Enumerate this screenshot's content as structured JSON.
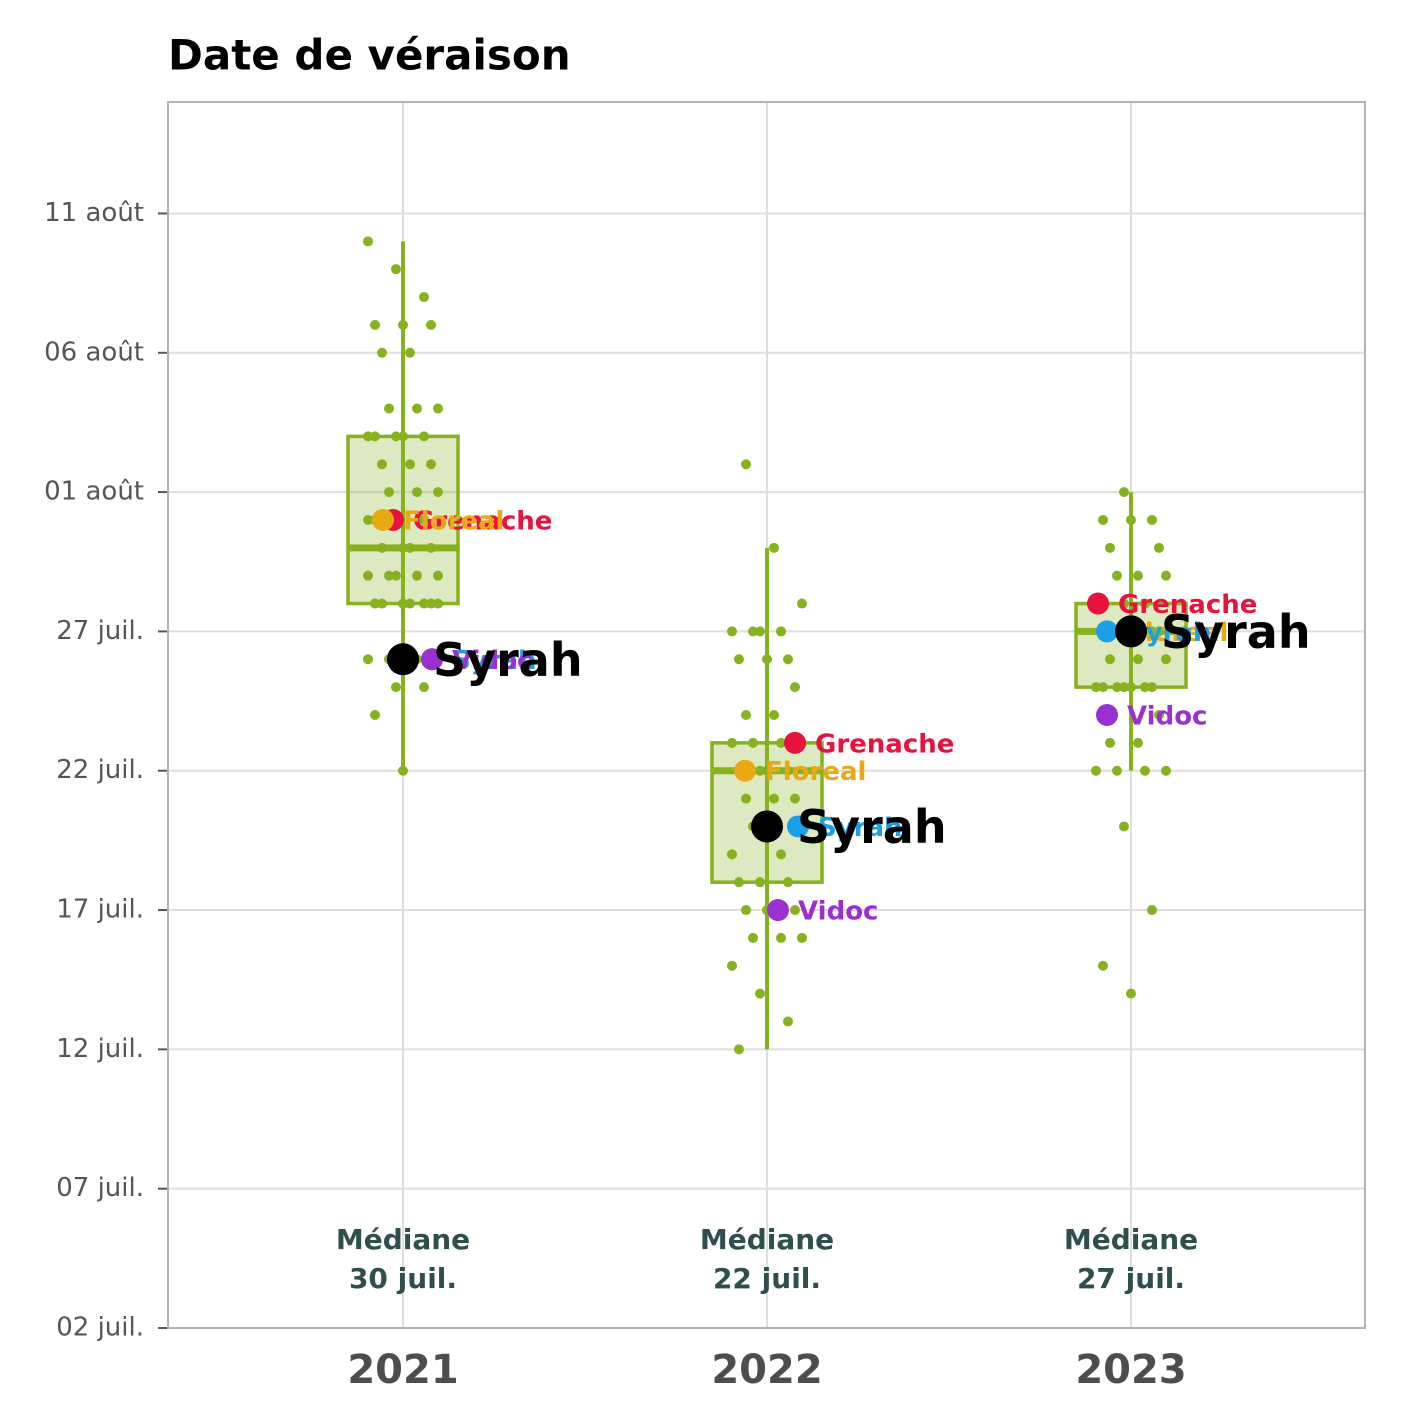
{
  "chart_data": {
    "type": "box",
    "title": "Date de véraison",
    "categories": [
      "2021",
      "2022",
      "2023"
    ],
    "ylim": [
      "07-02",
      "08-15"
    ],
    "yticks": [
      {
        "value": "07-02",
        "label": "02 juil."
      },
      {
        "value": "07-07",
        "label": "07 juil."
      },
      {
        "value": "07-12",
        "label": "12 juil."
      },
      {
        "value": "07-17",
        "label": "17 juil."
      },
      {
        "value": "07-22",
        "label": "22 juil."
      },
      {
        "value": "07-27",
        "label": "27 juil."
      },
      {
        "value": "08-01",
        "label": "01 août"
      },
      {
        "value": "08-06",
        "label": "06 août"
      },
      {
        "value": "08-11",
        "label": "11 août"
      }
    ],
    "grid": true,
    "color": "#86b21f",
    "boxes": [
      {
        "low": "07-22",
        "q1": "07-28",
        "median": "07-30",
        "q3": "08-03",
        "high": "08-10"
      },
      {
        "low": "07-12",
        "q1": "07-18",
        "median": "07-22",
        "q3": "07-23",
        "high": "07-30"
      },
      {
        "low": "07-22",
        "q1": "07-25",
        "median": "07-27",
        "q3": "07-28",
        "high": "08-01"
      }
    ],
    "points": [
      [
        "08-10",
        "08-09",
        "08-08",
        "08-07",
        "08-07",
        "08-07",
        "08-06",
        "08-06",
        "08-04",
        "08-04",
        "08-04",
        "08-03",
        "08-03",
        "08-03",
        "08-03",
        "08-03",
        "08-02",
        "08-02",
        "08-02",
        "08-01",
        "08-01",
        "08-01",
        "07-31",
        "07-31",
        "07-31",
        "07-31",
        "07-30",
        "07-30",
        "07-30",
        "07-30",
        "07-29",
        "07-29",
        "07-29",
        "07-29",
        "07-29",
        "07-28",
        "07-28",
        "07-28",
        "07-28",
        "07-28",
        "07-28",
        "07-28",
        "07-26",
        "07-26",
        "07-26",
        "07-25",
        "07-25",
        "07-24",
        "07-22"
      ],
      [
        "08-02",
        "07-30",
        "07-28",
        "07-27",
        "07-27",
        "07-27",
        "07-27",
        "07-26",
        "07-26",
        "07-26",
        "07-25",
        "07-24",
        "07-24",
        "07-23",
        "07-23",
        "07-23",
        "07-23",
        "07-22",
        "07-22",
        "07-22",
        "07-22",
        "07-21",
        "07-21",
        "07-21",
        "07-20",
        "07-20",
        "07-19",
        "07-19",
        "07-18",
        "07-18",
        "07-18",
        "07-17",
        "07-17",
        "07-17",
        "07-17",
        "07-16",
        "07-16",
        "07-16",
        "07-15",
        "07-14",
        "07-13",
        "07-12"
      ],
      [
        "08-01",
        "07-31",
        "07-31",
        "07-31",
        "07-30",
        "07-30",
        "07-29",
        "07-29",
        "07-29",
        "07-28",
        "07-28",
        "07-28",
        "07-27",
        "07-27",
        "07-27",
        "07-27",
        "07-26",
        "07-26",
        "07-26",
        "07-25",
        "07-25",
        "07-25",
        "07-25",
        "07-25",
        "07-25",
        "07-25",
        "07-24",
        "07-23",
        "07-23",
        "07-22",
        "07-22",
        "07-22",
        "07-22",
        "07-20",
        "07-17",
        "07-15",
        "07-14"
      ]
    ],
    "highlights": [
      {
        "name": "Grenache",
        "color": "#e8123f",
        "values": [
          "07-31",
          "07-23",
          "07-28"
        ]
      },
      {
        "name": "Floreal",
        "color": "#e8a914",
        "values": [
          "07-31",
          "07-22",
          "07-27"
        ]
      },
      {
        "name": "Syrah",
        "color": "#1ba0e8",
        "values": [
          "07-26",
          "07-20",
          "07-27"
        ]
      },
      {
        "name": "Vidoc",
        "color": "#9b30d0",
        "values": [
          "07-26",
          "07-17",
          "07-24"
        ]
      }
    ],
    "focus": {
      "name": "Syrah",
      "color": "#000000",
      "values": [
        "07-26",
        "07-20",
        "07-27"
      ]
    },
    "median_labels": [
      {
        "title": "Médiane",
        "date": "30 juil."
      },
      {
        "title": "Médiane",
        "date": "22 juil."
      },
      {
        "title": "Médiane",
        "date": "27 juil."
      }
    ]
  }
}
